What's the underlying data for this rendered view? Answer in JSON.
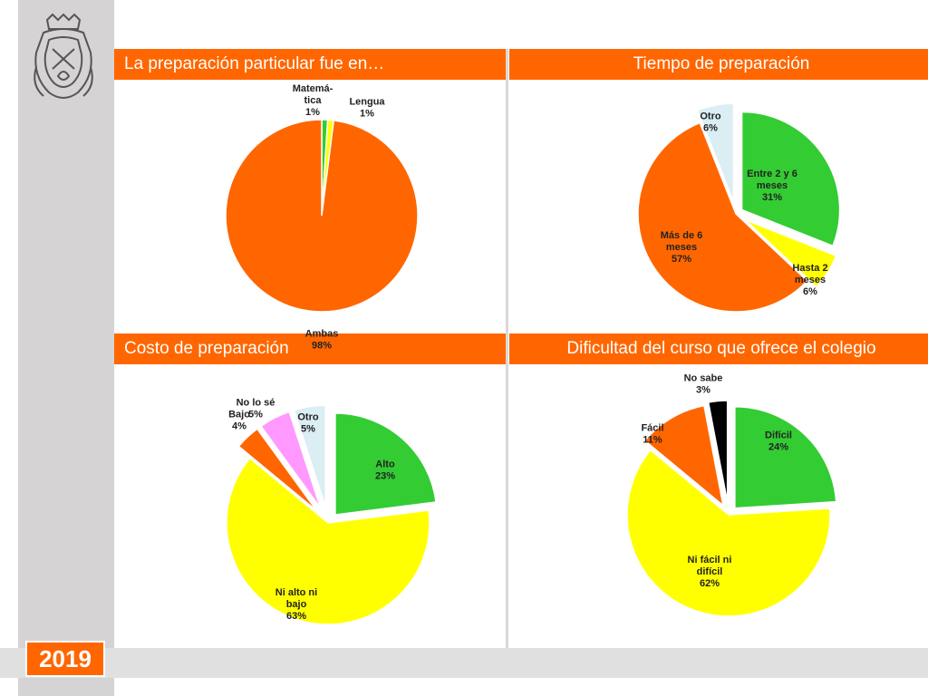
{
  "year_badge": "2019",
  "logo_icon": "university-crest-icon",
  "colors": {
    "accent": "#ff6600",
    "green": "#33cc33",
    "yellow": "#ffff00",
    "light_blue": "#daeef3",
    "pink": "#ff99ff",
    "black": "#000000",
    "strip_gray": "#d6d3d4",
    "band_gray": "#e1e0e0"
  },
  "panels": [
    {
      "title": "La preparación particular fue en…"
    },
    {
      "title": "Tiempo de preparación"
    },
    {
      "title": "Costo de preparación"
    },
    {
      "title": "Dificultad del curso que ofrece el colegio"
    }
  ],
  "chart_data": [
    {
      "type": "pie",
      "title": "La preparación particular fue en…",
      "slices": [
        {
          "label": [
            "Matemá-",
            "tica",
            "1%"
          ],
          "name": "Matemática",
          "value": 1,
          "color": "#33cc33"
        },
        {
          "label": [
            "Lengua",
            "1%"
          ],
          "name": "Lengua",
          "value": 1,
          "color": "#ffff00"
        },
        {
          "label": [
            "Ambas",
            "98%"
          ],
          "name": "Ambas",
          "value": 98,
          "color": "#ff6600"
        }
      ]
    },
    {
      "type": "pie",
      "title": "Tiempo de preparación",
      "slices": [
        {
          "label": [
            "Entre 2 y 6",
            "meses",
            "31%"
          ],
          "name": "Entre 2 y 6 meses",
          "value": 31,
          "color": "#33cc33"
        },
        {
          "label": [
            "Hasta 2",
            "meses",
            "6%"
          ],
          "name": "Hasta 2 meses",
          "value": 6,
          "color": "#ffff00"
        },
        {
          "label": [
            "Más de 6",
            "meses",
            "57%"
          ],
          "name": "Más de 6 meses",
          "value": 57,
          "color": "#ff6600"
        },
        {
          "label": [
            "Otro",
            "6%"
          ],
          "name": "Otro",
          "value": 6,
          "color": "#daeef3"
        }
      ]
    },
    {
      "type": "pie",
      "title": "Costo de preparación",
      "slices": [
        {
          "label": [
            "Alto",
            "23%"
          ],
          "name": "Alto",
          "value": 23,
          "color": "#33cc33"
        },
        {
          "label": [
            "Ni alto ni",
            "bajo",
            "63%"
          ],
          "name": "Ni alto ni bajo",
          "value": 63,
          "color": "#ffff00"
        },
        {
          "label": [
            "Bajo",
            "4%"
          ],
          "name": "Bajo",
          "value": 4,
          "color": "#ff6600"
        },
        {
          "label": [
            "No lo sé",
            "5%"
          ],
          "name": "No lo sé",
          "value": 5,
          "color": "#ff99ff"
        },
        {
          "label": [
            "Otro",
            "5%"
          ],
          "name": "Otro",
          "value": 5,
          "color": "#daeef3"
        }
      ]
    },
    {
      "type": "pie",
      "title": "Dificultad del curso que ofrece el colegio",
      "slices": [
        {
          "label": [
            "Difícil",
            "24%"
          ],
          "name": "Difícil",
          "value": 24,
          "color": "#33cc33"
        },
        {
          "label": [
            "Ni fácil ni",
            "difícil",
            "62%"
          ],
          "name": "Ni fácil ni difícil",
          "value": 62,
          "color": "#ffff00"
        },
        {
          "label": [
            "Fácil",
            "11%"
          ],
          "name": "Fácil",
          "value": 11,
          "color": "#ff6600"
        },
        {
          "label": [
            "No sabe",
            "3%"
          ],
          "name": "No sabe",
          "value": 3,
          "color": "#000000"
        }
      ]
    }
  ]
}
